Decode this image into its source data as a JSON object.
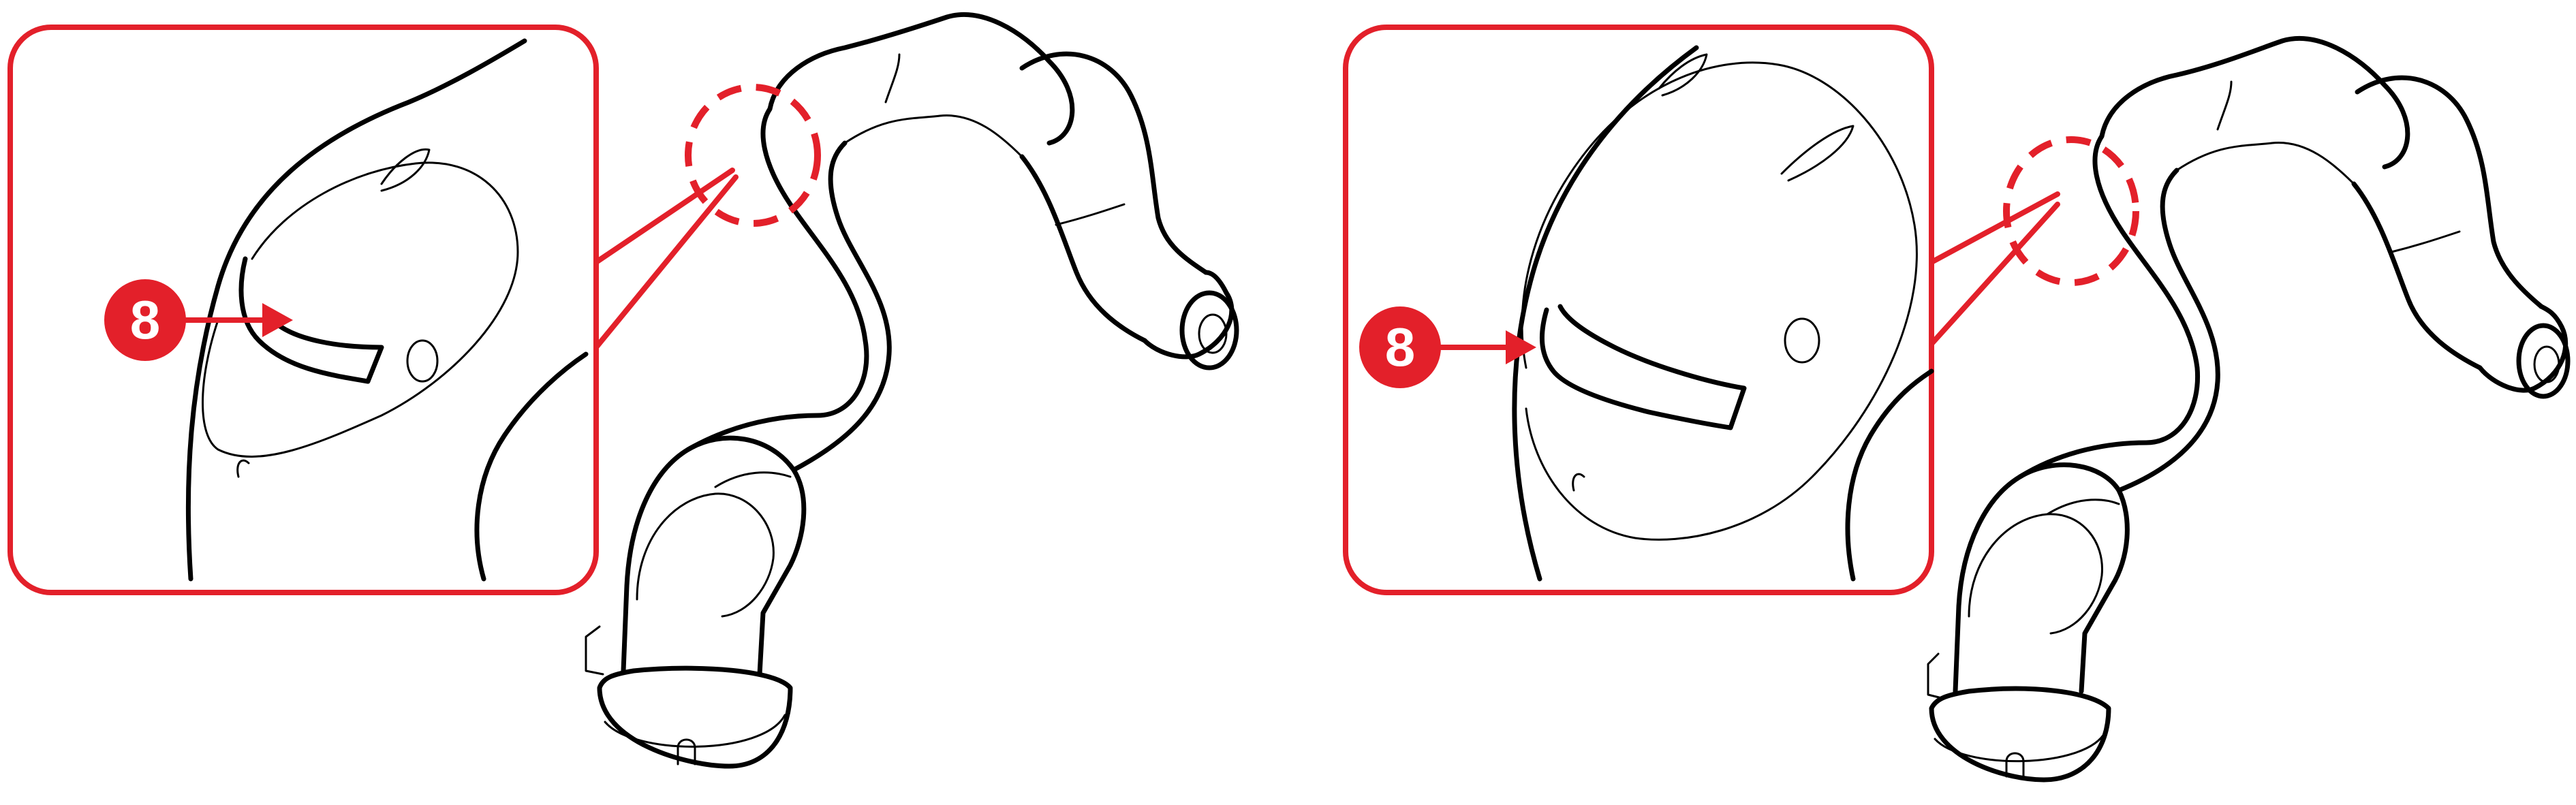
{
  "colors": {
    "callout_red": "#e3202a",
    "ink": "#000000",
    "background": "#ffffff",
    "badge_text": "#ffffff"
  },
  "panels": [
    {
      "id": "left",
      "variant": "short-tab",
      "callout_number": "8"
    },
    {
      "id": "right",
      "variant": "long-tab",
      "callout_number": "8"
    }
  ]
}
